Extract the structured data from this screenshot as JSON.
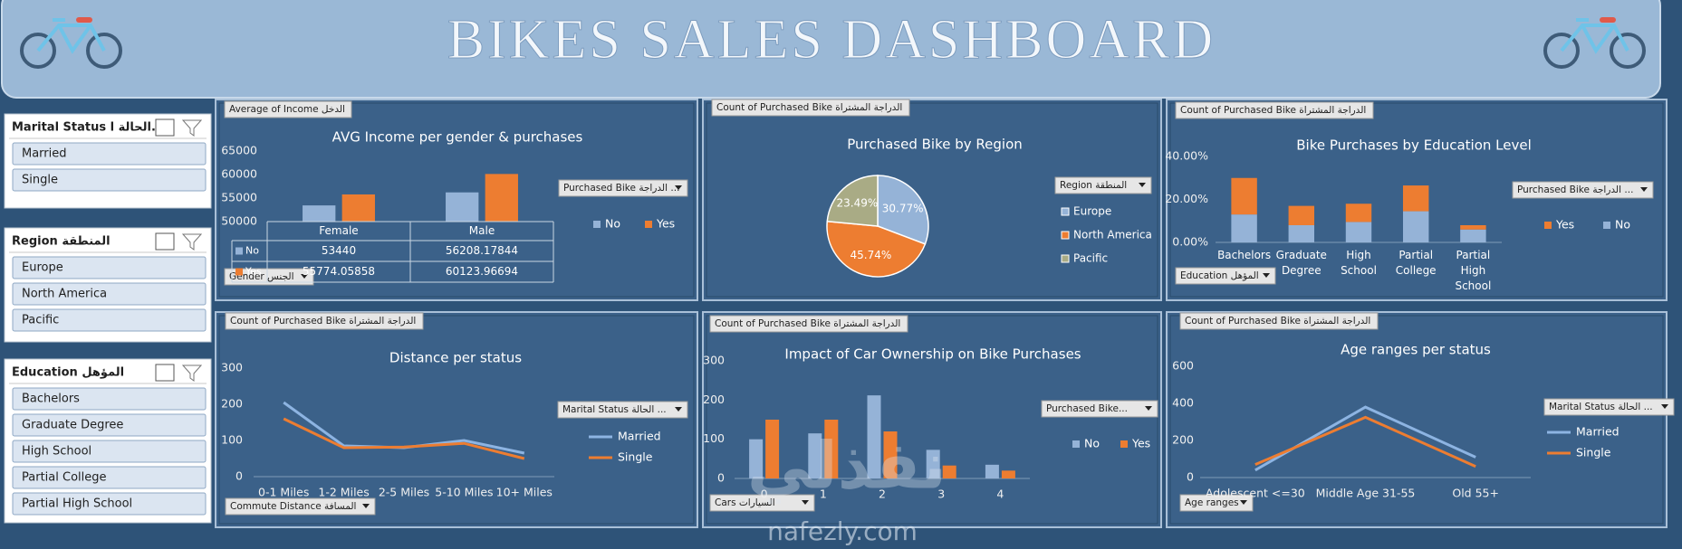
{
  "header": {
    "title": "BIKES SALES DASHBOARD"
  },
  "slicers": [
    {
      "title": "Marital Status الحالة ا...",
      "items": [
        "Married",
        "Single"
      ]
    },
    {
      "title": "Region المنطقة",
      "items": [
        "Europe",
        "North America",
        "Pacific"
      ]
    },
    {
      "title": "Education المؤهل",
      "items": [
        "Bachelors",
        "Graduate Degree",
        "High School",
        "Partial College",
        "Partial High School"
      ]
    }
  ],
  "chart_data": [
    {
      "type": "bar",
      "title": "AVG Income per gender & purchases",
      "buttons": [
        "Average of Income الدخل",
        "Gender الجنس"
      ],
      "legend_title": "Purchased Bike الدراجة ...",
      "categories": [
        "Female",
        "Male"
      ],
      "series": [
        {
          "name": "No",
          "color": "#95b3d7",
          "values": [
            53440,
            56208.17844
          ]
        },
        {
          "name": "Yes",
          "color": "#ed7d31",
          "values": [
            55774.05858,
            60123.96694
          ]
        }
      ],
      "ylim": [
        50000,
        65000
      ],
      "yticks": [
        50000,
        55000,
        60000,
        65000
      ],
      "data_table": true
    },
    {
      "type": "pie",
      "title": "Purchased Bike by Region",
      "buttons": [
        "Count of Purchased Bike الدراجة المشتراة"
      ],
      "legend_title": "Region المنطقة",
      "categories": [
        "Europe",
        "North America",
        "Pacific"
      ],
      "values": [
        30.77,
        45.74,
        23.49
      ],
      "value_labels": [
        "30.77%",
        "45.74%",
        "23.49%"
      ],
      "colors": [
        "#95b3d7",
        "#ed7d31",
        "#a9ab85"
      ]
    },
    {
      "type": "bar",
      "stacked": true,
      "title": "Bike Purchases by Education Level",
      "buttons": [
        "Count of Purchased Bike الدراجة المشتراة",
        "Education المؤهل"
      ],
      "legend_title": "Purchased Bike الدراجة ...",
      "categories": [
        "Bachelors",
        "Graduate Degree",
        "High School",
        "Partial College",
        "Partial High School"
      ],
      "series": [
        {
          "name": "No",
          "color": "#95b3d7",
          "values": [
            13,
            8,
            9.5,
            14.5,
            6
          ]
        },
        {
          "name": "Yes",
          "color": "#ed7d31",
          "values": [
            17,
            9,
            8.5,
            12,
            2
          ]
        }
      ],
      "ylim": [
        0,
        40
      ],
      "yticks": [
        {
          "value": 0,
          "label": "0.00%"
        },
        {
          "value": 20,
          "label": "20.00%"
        },
        {
          "value": 40,
          "label": "40.00%"
        }
      ]
    },
    {
      "type": "line",
      "title": "Distance per status",
      "buttons": [
        "Count of Purchased Bike الدراجة المشتراة",
        "Commute Distance المسافة"
      ],
      "legend_title": "Marital Status الحالة ...",
      "categories": [
        "0-1 Miles",
        "1-2 Miles",
        "2-5 Miles",
        "5-10 Miles",
        "10+ Miles"
      ],
      "series": [
        {
          "name": "Married",
          "color": "#8db4e2",
          "values": [
            205,
            85,
            80,
            100,
            65
          ]
        },
        {
          "name": "Single",
          "color": "#ed7d31",
          "values": [
            160,
            80,
            82,
            92,
            50
          ]
        }
      ],
      "ylim": [
        0,
        300
      ],
      "yticks": [
        0,
        100,
        200,
        300
      ]
    },
    {
      "type": "bar",
      "title": "Impact of Car Ownership on Bike Purchases",
      "buttons": [
        "Count of Purchased Bike الدراجة المشتراة",
        "Cars السيارات"
      ],
      "legend_title": "Purchased Bike...",
      "categories": [
        "0",
        "1",
        "2",
        "3",
        "4"
      ],
      "series": [
        {
          "name": "No",
          "color": "#95b3d7",
          "values": [
            100,
            115,
            212,
            73,
            35
          ]
        },
        {
          "name": "Yes",
          "color": "#ed7d31",
          "values": [
            150,
            150,
            120,
            33,
            20
          ]
        }
      ],
      "ylim": [
        0,
        300
      ],
      "yticks": [
        0,
        100,
        200,
        300
      ]
    },
    {
      "type": "line",
      "title": "Age ranges per status",
      "buttons": [
        "Count of Purchased Bike الدراجة المشتراة",
        "Age ranges"
      ],
      "legend_title": "Marital Status الحالة ...",
      "categories": [
        "Adolescent <=30",
        "Middle Age 31-55",
        "Old 55+"
      ],
      "series": [
        {
          "name": "Married",
          "color": "#8db4e2",
          "values": [
            40,
            380,
            110
          ]
        },
        {
          "name": "Single",
          "color": "#ed7d31",
          "values": [
            70,
            325,
            60
          ]
        }
      ],
      "ylim": [
        0,
        600
      ],
      "yticks": [
        0,
        200,
        400,
        600
      ]
    }
  ],
  "watermark": {
    "logo": "نفذلي",
    "text": "nafezly.com"
  }
}
